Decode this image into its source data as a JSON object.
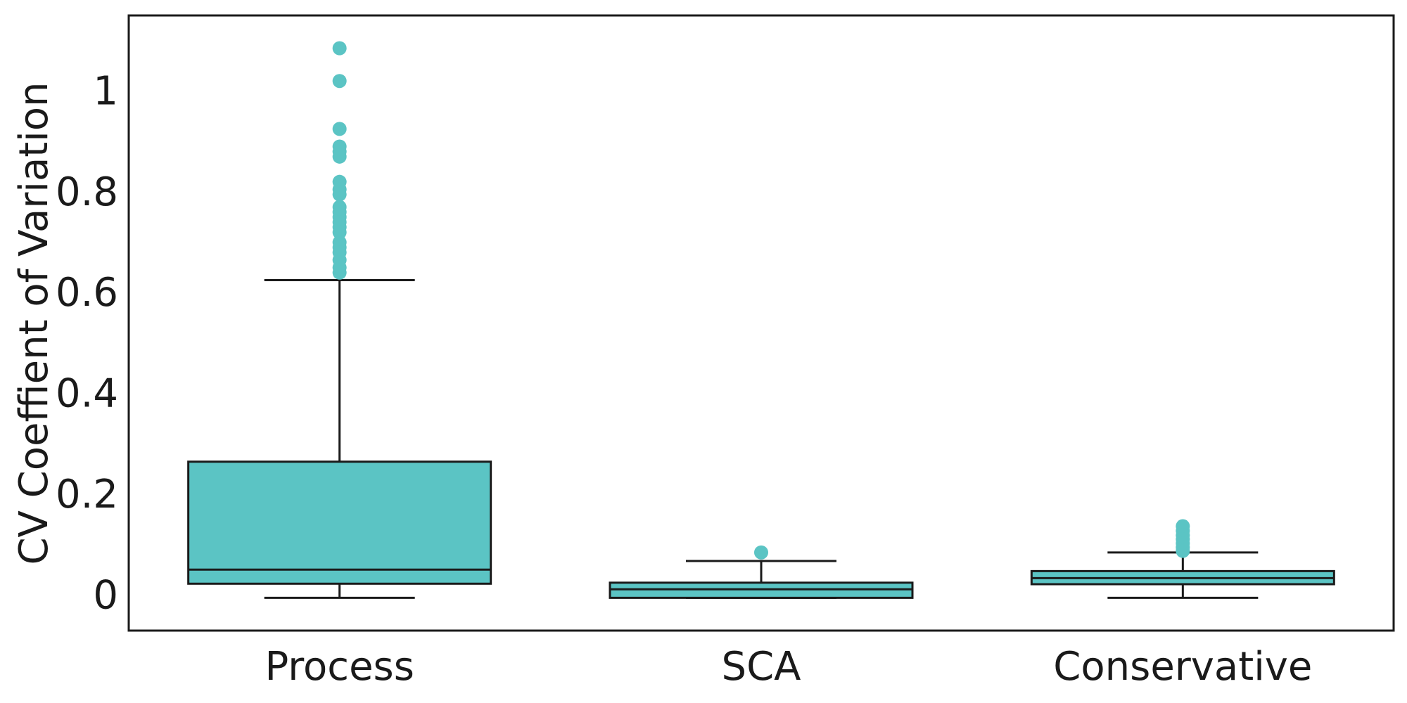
{
  "chart_data": {
    "type": "box",
    "title": "",
    "xlabel": "",
    "ylabel": "CV Coeffient of Variation",
    "ylim": [
      -0.065,
      1.155
    ],
    "yticks": [
      0,
      0.2,
      0.4,
      0.6,
      0.8,
      1
    ],
    "ytick_labels": [
      "0",
      "0.2",
      "0.4",
      "0.6",
      "0.8",
      "1"
    ],
    "grid": false,
    "legend": "none",
    "box_color": "#5BC4C4",
    "line_color": "#1a1a1a",
    "categories": [
      "Process",
      "SCA",
      "Conservative"
    ],
    "boxes": [
      {
        "category": "Process",
        "whisker_low": 0.0,
        "q1": 0.028,
        "median": 0.056,
        "q3": 0.27,
        "whisker_high": 0.63,
        "outliers": [
          1.09,
          1.025,
          0.93,
          0.895,
          0.885,
          0.875,
          0.825,
          0.81,
          0.8,
          0.775,
          0.765,
          0.755,
          0.745,
          0.735,
          0.725,
          0.705,
          0.695,
          0.685,
          0.67,
          0.655,
          0.645
        ]
      },
      {
        "category": "SCA",
        "whisker_low": 0.0,
        "q1": 0.0,
        "median": 0.017,
        "q3": 0.03,
        "whisker_high": 0.073,
        "outliers": [
          0.09
        ]
      },
      {
        "category": "Conservative",
        "whisker_low": 0.0,
        "q1": 0.027,
        "median": 0.039,
        "q3": 0.053,
        "whisker_high": 0.09,
        "outliers": [
          0.142,
          0.133,
          0.124,
          0.116,
          0.108,
          0.1,
          0.093
        ]
      }
    ]
  }
}
